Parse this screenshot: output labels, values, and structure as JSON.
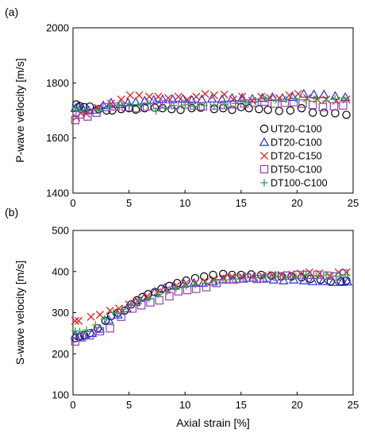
{
  "figure": {
    "xlabel": "Axial strain [%]",
    "colors": {
      "UT20-C100": "#000000",
      "DT20-C100": "#1f2ee8",
      "DT20-C150": "#e81e1e",
      "DT50-C100": "#8e44ad",
      "DT100-C100": "#27a844"
    },
    "markers": {
      "UT20-C100": "circle",
      "DT20-C100": "triangle",
      "DT20-C150": "cross",
      "DT50-C100": "square",
      "DT100-C100": "plus"
    }
  },
  "chart_data": [
    {
      "panel_label": "(a)",
      "type": "scatter",
      "xlabel": "",
      "ylabel": "P-wave velocity [m/s]",
      "xlim": [
        0,
        25
      ],
      "ylim": [
        1400,
        2000
      ],
      "xticks": [
        "0",
        "5",
        "10",
        "15",
        "20",
        "25"
      ],
      "yticks": [
        "1400",
        "1600",
        "1800",
        "2000"
      ],
      "legend": [
        "UT20-C100",
        "DT20-C100",
        "DT20-C150",
        "DT50-C100",
        "DT100-C100"
      ],
      "legend_position": "bottom-right",
      "series": [
        {
          "name": "UT20-C100",
          "x": [
            0.3,
            0.6,
            1.0,
            1.5,
            2.3,
            3.0,
            3.5,
            4.3,
            5.0,
            5.6,
            6.4,
            7.3,
            8.0,
            8.8,
            9.6,
            10.6,
            11.4,
            12.6,
            13.4,
            14.2,
            15.0,
            15.7,
            16.6,
            17.4,
            18.4,
            19.4,
            20.4,
            21.4,
            22.4,
            23.4,
            24.4
          ],
          "y": [
            1722,
            1716,
            1712,
            1714,
            1705,
            1700,
            1700,
            1705,
            1708,
            1703,
            1708,
            1710,
            1708,
            1705,
            1702,
            1708,
            1710,
            1705,
            1708,
            1702,
            1712,
            1708,
            1705,
            1702,
            1698,
            1700,
            1708,
            1692,
            1692,
            1690,
            1684
          ]
        },
        {
          "name": "DT20-C100",
          "x": [
            0.2,
            0.5,
            0.9,
            1.4,
            2.0,
            2.7,
            3.4,
            4.2,
            4.9,
            5.6,
            6.4,
            7.2,
            8.0,
            8.9,
            9.8,
            10.6,
            11.5,
            12.4,
            13.3,
            14.2,
            15.1,
            16.0,
            16.9,
            17.8,
            18.7,
            19.6,
            20.6,
            21.5,
            22.4,
            23.4,
            24.3
          ],
          "y": [
            1708,
            1712,
            1705,
            1700,
            1702,
            1718,
            1728,
            1722,
            1728,
            1730,
            1735,
            1738,
            1740,
            1740,
            1742,
            1738,
            1740,
            1742,
            1740,
            1745,
            1745,
            1742,
            1745,
            1748,
            1745,
            1748,
            1760,
            1758,
            1758,
            1752,
            1748
          ]
        },
        {
          "name": "DT20-C150",
          "x": [
            0.3,
            0.7,
            1.2,
            2.2,
            3.4,
            4.3,
            5.1,
            5.9,
            6.8,
            7.6,
            8.5,
            9.4,
            10.2,
            11.0,
            11.8,
            12.6,
            13.5,
            14.3,
            15.1,
            16.0,
            16.8,
            17.6,
            18.4,
            19.3,
            20.1,
            20.9,
            21.8,
            22.6,
            23.5,
            24.4
          ],
          "y": [
            1675,
            1690,
            1688,
            1710,
            1725,
            1740,
            1755,
            1755,
            1750,
            1750,
            1745,
            1750,
            1740,
            1750,
            1760,
            1755,
            1758,
            1740,
            1750,
            1735,
            1750,
            1745,
            1745,
            1755,
            1760,
            1745,
            1740,
            1740,
            1735,
            1740
          ]
        },
        {
          "name": "DT50-C100",
          "x": [
            0.2,
            0.6,
            1.3,
            2.1,
            3.0,
            3.8,
            4.7,
            5.7,
            6.6,
            7.5,
            8.3,
            9.1,
            10.0,
            10.8,
            11.6,
            12.6,
            13.5,
            14.4,
            15.3,
            16.2,
            17.1,
            18.0,
            18.9,
            19.7,
            20.5,
            21.4,
            22.3,
            23.3,
            24.1
          ],
          "y": [
            1665,
            1685,
            1678,
            1692,
            1712,
            1714,
            1712,
            1708,
            1714,
            1720,
            1722,
            1720,
            1722,
            1718,
            1715,
            1718,
            1720,
            1722,
            1725,
            1728,
            1732,
            1725,
            1728,
            1730,
            1725,
            1720,
            1712,
            1715,
            1718
          ]
        },
        {
          "name": "DT100-C100",
          "x": [
            0.2,
            0.6,
            1.3,
            2.3,
            3.2,
            4.1,
            5.0,
            5.8,
            6.7,
            7.4,
            8.2,
            9.0,
            10.0,
            10.8,
            11.7,
            12.6,
            13.5,
            14.5,
            15.4,
            16.3,
            17.2,
            18.1,
            19.0,
            19.9,
            20.8,
            21.7,
            22.6,
            23.4,
            24.2
          ],
          "y": [
            1710,
            1700,
            1705,
            1700,
            1712,
            1720,
            1718,
            1722,
            1725,
            1698,
            1710,
            1718,
            1720,
            1715,
            1718,
            1720,
            1722,
            1725,
            1728,
            1732,
            1742,
            1738,
            1740,
            1742,
            1738,
            1742,
            1735,
            1742,
            1745
          ]
        }
      ]
    },
    {
      "panel_label": "(b)",
      "type": "scatter",
      "xlabel": "Axial strain [%]",
      "ylabel": "S-wave velocity [m/s]",
      "xlim": [
        0,
        25
      ],
      "ylim": [
        100,
        500
      ],
      "xticks": [
        "0",
        "5",
        "10",
        "15",
        "20",
        "25"
      ],
      "yticks": [
        "100",
        "200",
        "300",
        "400",
        "500"
      ],
      "series": [
        {
          "name": "UT20-C100",
          "x": [
            0.2,
            0.6,
            1.0,
            1.5,
            2.2,
            2.9,
            3.4,
            4.0,
            4.6,
            5.2,
            5.7,
            6.2,
            6.7,
            7.3,
            7.9,
            8.6,
            9.3,
            10.1,
            10.9,
            11.7,
            12.5,
            13.4,
            14.2,
            15.0,
            15.9,
            16.8,
            17.7,
            18.6,
            19.5,
            20.4,
            21.2,
            22.1,
            23.0,
            23.9,
            24.4
          ],
          "y": [
            238,
            242,
            245,
            250,
            262,
            280,
            292,
            300,
            305,
            320,
            330,
            338,
            345,
            350,
            358,
            365,
            372,
            378,
            384,
            388,
            392,
            394,
            392,
            392,
            393,
            392,
            390,
            388,
            388,
            386,
            382,
            380,
            376,
            376,
            378
          ]
        },
        {
          "name": "DT20-C100",
          "x": [
            0.2,
            0.6,
            1.1,
            1.7,
            2.4,
            3.2,
            4.0,
            4.8,
            5.6,
            6.4,
            7.3,
            8.2,
            9.0,
            9.9,
            10.8,
            11.6,
            12.5,
            13.4,
            14.3,
            15.2,
            16.1,
            17.0,
            17.9,
            18.8,
            19.7,
            20.6,
            21.4,
            22.3,
            23.2,
            24.0,
            24.5
          ],
          "y": [
            245,
            242,
            245,
            250,
            260,
            282,
            295,
            310,
            325,
            338,
            350,
            360,
            365,
            370,
            372,
            372,
            375,
            380,
            380,
            382,
            384,
            382,
            380,
            378,
            380,
            378,
            376,
            376,
            374,
            374,
            375
          ]
        },
        {
          "name": "DT20-C150",
          "x": [
            0.2,
            0.5,
            1.6,
            2.4,
            3.3,
            4.1,
            5.0,
            5.8,
            6.6,
            7.5,
            8.3,
            9.2,
            10.0,
            10.9,
            11.8,
            12.6,
            13.4,
            14.2,
            15.1,
            16.0,
            16.9,
            17.8,
            18.6,
            19.5,
            20.3,
            21.1,
            22.0,
            22.9,
            23.7,
            24.4
          ],
          "y": [
            280,
            280,
            290,
            295,
            305,
            310,
            320,
            330,
            340,
            350,
            355,
            365,
            370,
            372,
            375,
            380,
            385,
            388,
            388,
            388,
            390,
            392,
            392,
            392,
            395,
            398,
            395,
            390,
            398,
            398
          ]
        },
        {
          "name": "DT50-C100",
          "x": [
            0.2,
            0.8,
            1.5,
            2.4,
            3.3,
            4.3,
            5.3,
            6.1,
            6.9,
            7.7,
            8.6,
            9.4,
            10.2,
            11.0,
            11.9,
            12.8,
            13.7,
            14.6,
            15.5,
            16.4,
            17.3,
            18.2,
            19.1,
            20.0,
            20.9,
            21.8,
            22.7,
            23.5,
            24.2
          ],
          "y": [
            230,
            240,
            245,
            255,
            262,
            290,
            310,
            318,
            325,
            330,
            340,
            352,
            355,
            358,
            362,
            372,
            382,
            382,
            385,
            382,
            385,
            388,
            390,
            392,
            392,
            392,
            390,
            388,
            395
          ]
        },
        {
          "name": "DT100-C100",
          "x": [
            0.2,
            0.6,
            1.2,
            2.0,
            2.8,
            3.6,
            4.4,
            5.2,
            6.0,
            6.8,
            7.6,
            8.4,
            9.2,
            10.1,
            10.9,
            11.8,
            12.7,
            13.6,
            14.5,
            15.4,
            16.3,
            17.2,
            18.1,
            19.0,
            19.9,
            20.8,
            21.7,
            22.6,
            23.5,
            24.3
          ],
          "y": [
            255,
            255,
            258,
            270,
            285,
            300,
            308,
            318,
            328,
            335,
            345,
            352,
            360,
            365,
            368,
            372,
            378,
            380,
            382,
            385,
            385,
            388,
            388,
            385,
            388,
            392,
            390,
            392,
            388,
            392
          ]
        }
      ]
    }
  ]
}
